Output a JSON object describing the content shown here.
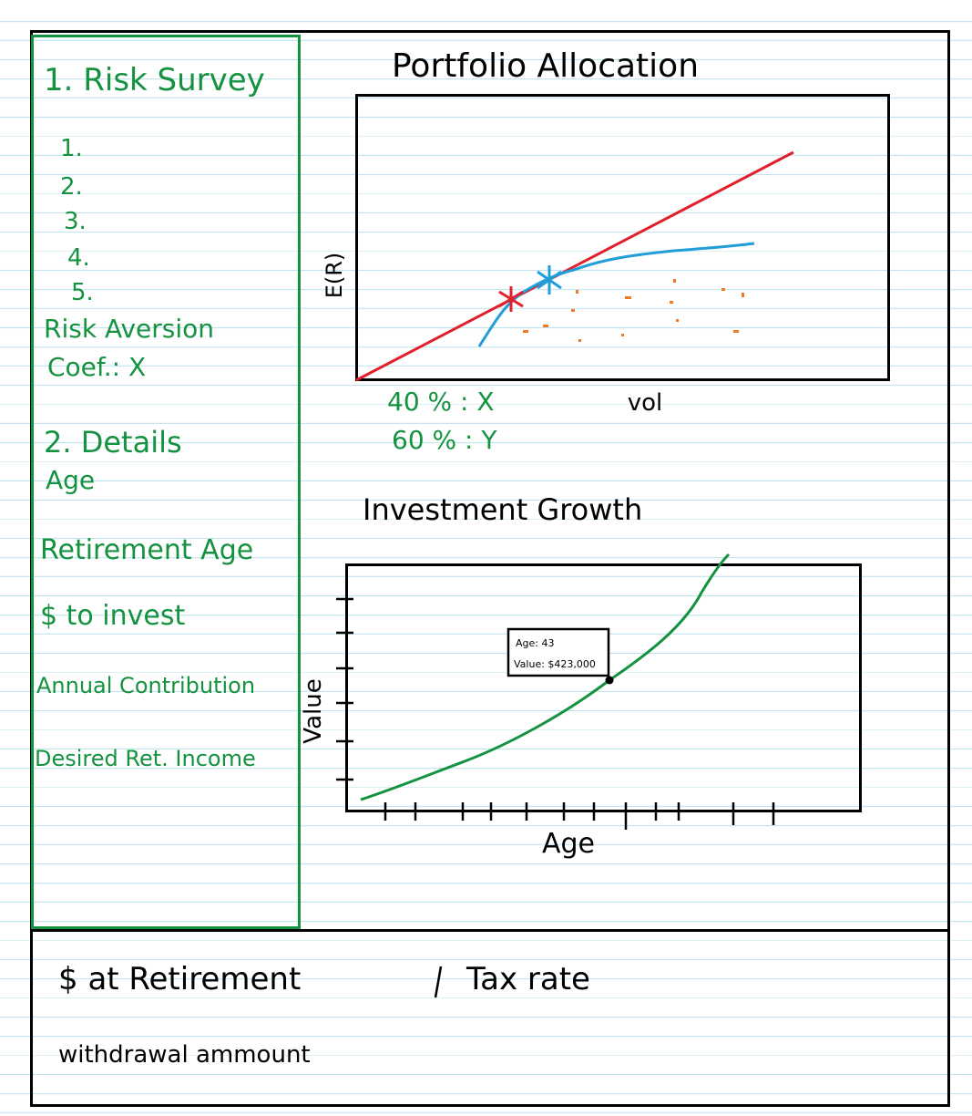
{
  "sidebar": {
    "section1_title": "1. Risk Survey",
    "survey_items": [
      "1.",
      "2.",
      "3.",
      "4.",
      "5."
    ],
    "risk_aversion_label": "Risk Aversion",
    "risk_aversion_value": "Coef.: X",
    "section2_title": "2. Details",
    "fields": [
      "Age",
      "Retirement Age",
      "$ to invest",
      "Annual Contribution",
      "Desired Ret. Income"
    ]
  },
  "portfolio": {
    "title": "Portfolio Allocation",
    "ylabel": "E(R)",
    "xlabel": "vol",
    "allocations": [
      "40 % : X",
      "60 % : Y"
    ]
  },
  "growth": {
    "title": "Investment Growth",
    "ylabel": "Value",
    "xlabel": "Age",
    "tooltip_age": "Age: 43",
    "tooltip_value": "Value: $423,000"
  },
  "footer": {
    "retirement_label": "$ at Retirement",
    "tax_label": "Tax rate",
    "withdrawal_label": "withdrawal ammount"
  },
  "colors": {
    "green": "#15923f",
    "red": "#e0202c",
    "blue": "#1f9ed8",
    "orange": "#f07a22"
  }
}
